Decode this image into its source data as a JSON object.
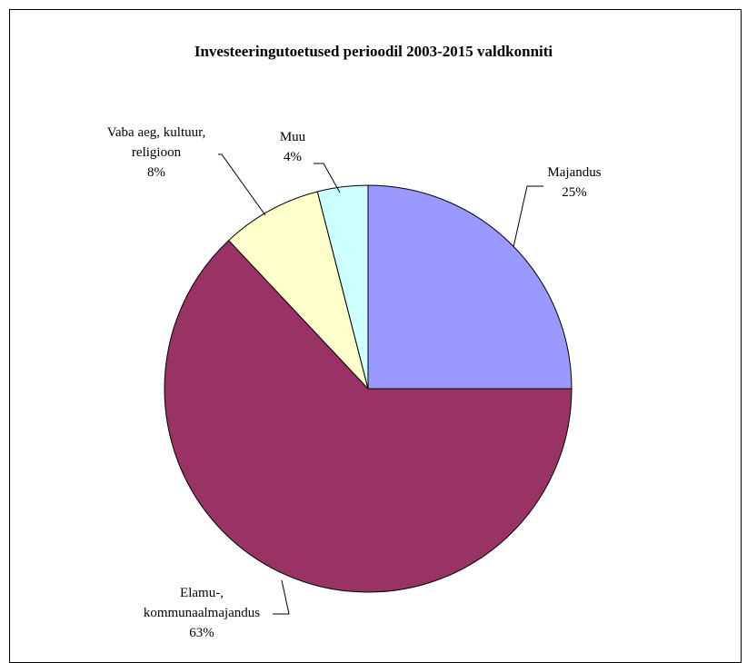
{
  "chart_data": {
    "type": "pie",
    "title": "Investeeringutoetused perioodil 2003-2015 valdkonniti",
    "slices": [
      {
        "name": "Majandus",
        "label_lines": [
          "Majandus"
        ],
        "percent_label": "25%",
        "value": 25,
        "color": "#9999ff"
      },
      {
        "name": "Elamu-, kommunaalmajandus",
        "label_lines": [
          "Elamu-,",
          "kommunaalmajandus"
        ],
        "percent_label": "63%",
        "value": 63,
        "color": "#993366"
      },
      {
        "name": "Vaba aeg, kultuur, religioon",
        "label_lines": [
          "Vaba aeg, kultuur,",
          "religioon"
        ],
        "percent_label": "8%",
        "value": 8,
        "color": "#ffffcc"
      },
      {
        "name": "Muu",
        "label_lines": [
          "Muu"
        ],
        "percent_label": "4%",
        "value": 4,
        "color": "#ccffff"
      }
    ],
    "legend": "none"
  }
}
